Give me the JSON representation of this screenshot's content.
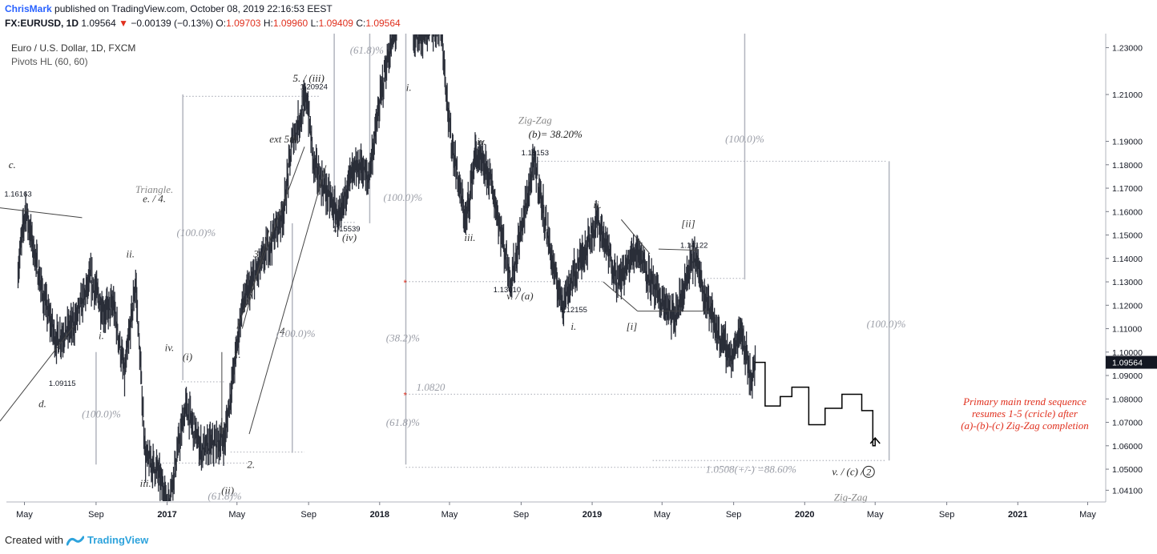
{
  "header": {
    "user": "ChrisMark",
    "published": "published on TradingView.com, October 08, 2019 22:16:53 EEST",
    "symbol": "FX:EURUSD, 1D",
    "last": "1.09564",
    "change": "−0.00139 (−0.13%)",
    "o_label": "O:",
    "o": "1.09703",
    "h_label": "H:",
    "h": "1.09960",
    "l_label": "L:",
    "l": "1.09409",
    "c_label": "C:",
    "c": "1.09564"
  },
  "legend": {
    "title": "Euro / U.S. Dollar, 1D, FXCM",
    "indicator": "Pivots HL (60, 60)"
  },
  "footer": {
    "created": "Created with",
    "brand": "TradingView"
  },
  "colors": {
    "candle": "#2a2e39",
    "projection": "#000000",
    "fib": "#b2b5be",
    "note": "#e0301e",
    "price_tag": "#131722"
  },
  "chart_data": {
    "type": "line",
    "title": "",
    "x_tick_labels": [
      "May",
      "Sep",
      "2017",
      "May",
      "Sep",
      "2018",
      "May",
      "Sep",
      "2019",
      "May",
      "Sep",
      "2020",
      "May",
      "Sep",
      "2021",
      "May"
    ],
    "y_tick_labels": [
      "1.23000",
      "1.21000",
      "1.19000",
      "1.18000",
      "1.17000",
      "1.16000",
      "1.15000",
      "1.14000",
      "1.13000",
      "1.12000",
      "1.11000",
      "1.10000",
      "1.09000",
      "1.08000",
      "1.07000",
      "1.06000",
      "1.05000",
      "1.04100"
    ],
    "ylim": [
      1.036,
      1.236
    ],
    "last_price": "1.09564",
    "series": [
      {
        "x": [
          "2016-04-20",
          "2016-05-03",
          "2016-06-01",
          "2016-06-24",
          "2016-07-25",
          "2016-08-23",
          "2016-09-15",
          "2016-10-01",
          "2016-10-20",
          "2016-11-08",
          "2016-11-25",
          "2016-12-15",
          "2017-01-03",
          "2017-02-02",
          "2017-03-01",
          "2017-04-10",
          "2017-05-10",
          "2017-06-15",
          "2017-07-20",
          "2017-08-04",
          "2017-08-29",
          "2017-09-10",
          "2017-10-26",
          "2017-11-07",
          "2017-12-01",
          "2017-12-12",
          "2018-01-10",
          "2018-02-16",
          "2018-03-01",
          "2018-04-17",
          "2018-05-01",
          "2018-05-29",
          "2018-06-14",
          "2018-07-09",
          "2018-08-15",
          "2018-09-24",
          "2018-10-31",
          "2018-11-12",
          "2019-01-10",
          "2019-02-15",
          "2019-03-20",
          "2019-04-20",
          "2019-05-23",
          "2019-06-25",
          "2019-08-01",
          "2019-08-30",
          "2019-09-13",
          "2019-10-01",
          "2019-10-08"
        ],
        "values": [
          1.135,
          1.1616,
          1.125,
          1.105,
          1.112,
          1.1311,
          1.117,
          1.12,
          1.09,
          1.1299,
          1.055,
          1.05,
          1.035,
          1.077,
          1.058,
          1.063,
          1.12,
          1.14,
          1.16,
          1.19,
          1.2092,
          1.18,
          1.1554,
          1.1735,
          1.18,
          1.173,
          1.22,
          1.2555,
          1.235,
          1.24,
          1.195,
          1.155,
          1.1845,
          1.175,
          1.13,
          1.1815,
          1.13,
          1.1216,
          1.1566,
          1.13,
          1.145,
          1.125,
          1.114,
          1.1412,
          1.11,
          1.097,
          1.111,
          1.088,
          1.0956
        ]
      },
      {
        "name": "",
        "x": [
          "2019-10-08",
          "2019-10-25",
          "2019-11-20",
          "2019-12-10",
          "2020-01-08",
          "2020-02-05",
          "2020-03-05",
          "2020-04-08",
          "2020-04-27",
          "2020-05-01"
        ],
        "values": [
          1.0956,
          1.077,
          1.081,
          1.085,
          1.069,
          1.076,
          1.082,
          1.075,
          1.06,
          1.063
        ]
      }
    ],
    "price_labels": [
      "1.16163",
      "1.09115",
      "1.20924",
      "1.15539",
      "1.18153",
      "1.13010",
      "1.12155",
      "1.14122"
    ],
    "wave_labels": [
      "c.",
      "Triangle.",
      "e. / 4.",
      "d.",
      "i.",
      "ii.",
      "iii.",
      "iv.",
      "(i)",
      "(ii)",
      "1.",
      "2.",
      "3.",
      "4.",
      "ext 5th.",
      "5. / (iii)",
      "(iv)",
      "i.",
      "iii.",
      "iv.",
      "v. / (a)",
      "i.",
      "ii.",
      "[i]",
      "[ii]",
      "v. / (c) /",
      "2",
      "Zig-Zag",
      "Zig-Zag",
      "(b)= 38.20%"
    ],
    "fib_labels": [
      "(100.0)%",
      "(100.0)%",
      "(61.8)%",
      "(100.0)%",
      "(61.8)%",
      "(100.0)%",
      "(38.2)%",
      "(61.8)%",
      "(100.0)%",
      "(100.0)%"
    ],
    "levels": [
      "1.0820",
      "1.0508(+/-) =88.60%"
    ],
    "annotation": [
      "Primary main trend sequence",
      "resumes 1-5 (cricle) after",
      "(a)-(b)-(c) Zig-Zag completion"
    ]
  }
}
